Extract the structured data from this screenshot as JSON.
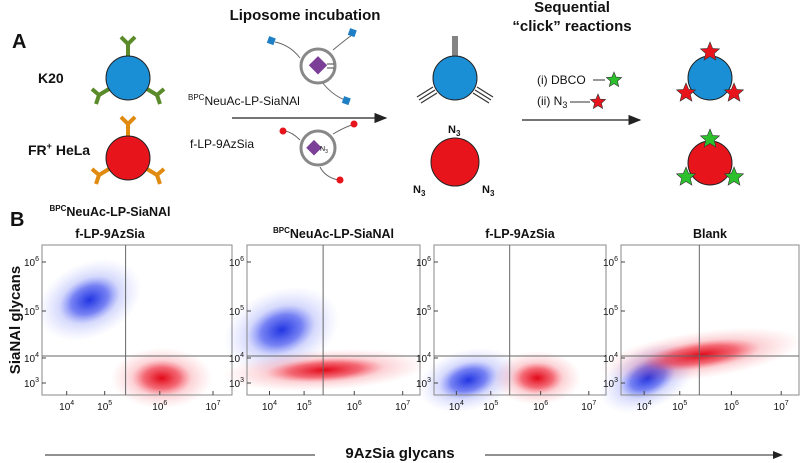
{
  "panel_a": {
    "label": "A",
    "step1": "Liposome incubation",
    "step2_line1": "Sequential",
    "step2_line2": "“click” reactions",
    "cells": [
      {
        "name": "K20"
      },
      {
        "name": "FR",
        "sup": "+",
        "suffix": " HeLa"
      }
    ],
    "liposomes": [
      {
        "prefix": "BPC",
        "name": "NeuAc-LP-SiaNAl"
      },
      {
        "name": "f-LP-9AzSia"
      }
    ],
    "azide": {
      "base": "N",
      "sub": "3"
    },
    "reagents": [
      {
        "text": "(i) DBCO"
      },
      {
        "text": "(ii) N",
        "sub": "3"
      }
    ]
  },
  "panel_b": {
    "label": "B",
    "y_label": "SiaNAl glycans",
    "x_label": "9AzSia glycans",
    "x_ticks": [
      {
        "base": "10",
        "exponent": "4"
      },
      {
        "base": "10",
        "exponent": "5"
      },
      {
        "base": "10",
        "exponent": "6"
      },
      {
        "base": "10",
        "exponent": "7"
      }
    ],
    "y_ticks": [
      {
        "base": "10",
        "exponent": "6"
      },
      {
        "base": "10",
        "exponent": "5"
      },
      {
        "base": "10",
        "exponent": "4"
      },
      {
        "base": "10",
        "exponent": "3"
      }
    ],
    "plots": [
      {
        "title": [
          {
            "prefix": "BPC",
            "name": "NeuAc-LP-SiaNAl"
          },
          {
            "name": "f-LP-9AzSia"
          }
        ]
      },
      {
        "title": [
          {
            "prefix": "BPC",
            "name": "NeuAc-LP-SiaNAl"
          }
        ]
      },
      {
        "title": [
          {
            "name": "f-LP-9AzSia"
          }
        ]
      },
      {
        "title": [
          {
            "name": "Blank"
          }
        ]
      }
    ]
  }
}
